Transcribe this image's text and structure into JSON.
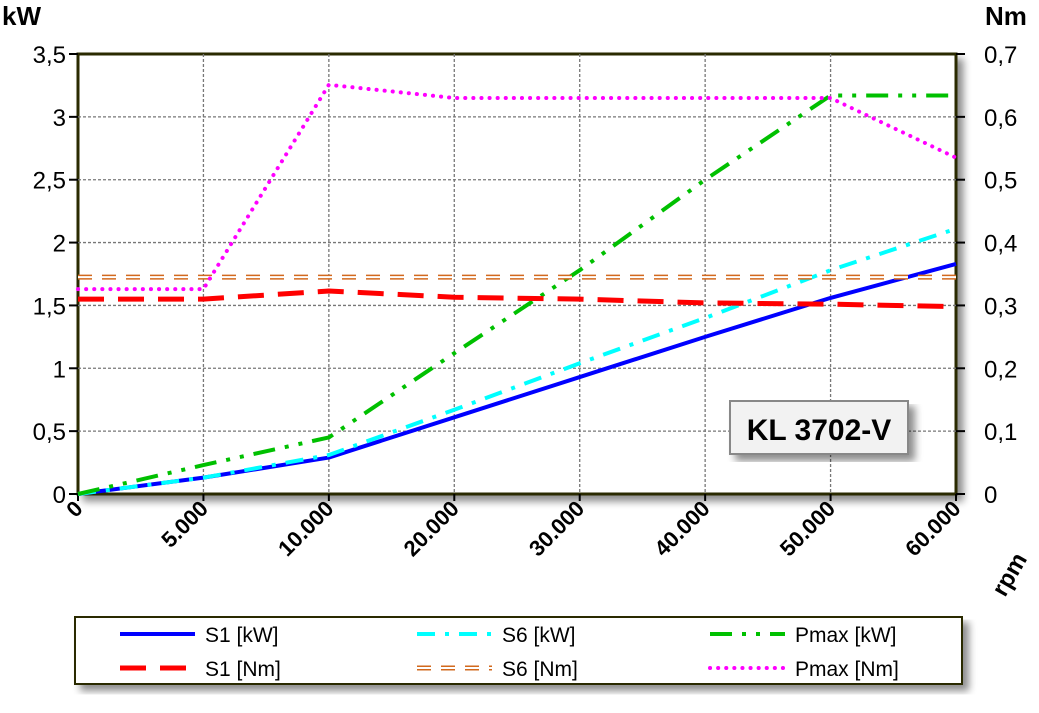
{
  "chart_data": {
    "type": "line",
    "title": "",
    "label_box": "KL 3702-V",
    "xlabel": "rpm",
    "ylabel_left": "kW",
    "ylabel_right": "Nm",
    "categories": [
      "0",
      "5.000",
      "10.000",
      "20.000",
      "30.000",
      "40.000",
      "50.000",
      "60.000"
    ],
    "ylim_left": [
      0,
      3.5
    ],
    "ylim_right": [
      0,
      0.7
    ],
    "yticks_left": [
      "0",
      "0,5",
      "1",
      "1,5",
      "2",
      "2,5",
      "3",
      "3,5"
    ],
    "yticks_right": [
      "0",
      "0,1",
      "0,2",
      "0,3",
      "0,4",
      "0,5",
      "0,6",
      "0,7"
    ],
    "grid": true,
    "legend_position": "bottom",
    "series": [
      {
        "name": "S1 [kW]",
        "axis": "left",
        "color": "#0000ff",
        "style": "solid",
        "values": [
          0,
          0.13,
          0.29,
          0.61,
          0.93,
          1.25,
          1.56,
          1.83
        ]
      },
      {
        "name": "S6 [kW]",
        "axis": "left",
        "color": "#00ffff",
        "style": "dashdot",
        "values": [
          0,
          0.13,
          0.31,
          0.67,
          1.04,
          1.4,
          1.78,
          2.11
        ]
      },
      {
        "name": "Pmax [kW]",
        "axis": "left",
        "color": "#00c000",
        "style": "dashdotdot",
        "values": [
          0,
          0.23,
          0.45,
          1.12,
          1.78,
          2.5,
          3.17,
          3.17
        ]
      },
      {
        "name": "S1 [Nm]",
        "axis": "right",
        "color": "#ff0000",
        "style": "longdash",
        "values": [
          0.31,
          0.31,
          0.323,
          0.313,
          0.31,
          0.304,
          0.302,
          0.298
        ]
      },
      {
        "name": "S6 [Nm]",
        "axis": "right",
        "color": "#d2691e",
        "style": "hollowdash",
        "values": [
          0.345,
          0.345,
          0.345,
          0.345,
          0.345,
          0.345,
          0.345,
          0.345
        ]
      },
      {
        "name": "Pmax [Nm]",
        "axis": "right",
        "color": "#ff00ff",
        "style": "dotted",
        "values": [
          0.326,
          0.326,
          0.651,
          0.63,
          0.63,
          0.63,
          0.63,
          0.535
        ]
      }
    ]
  }
}
